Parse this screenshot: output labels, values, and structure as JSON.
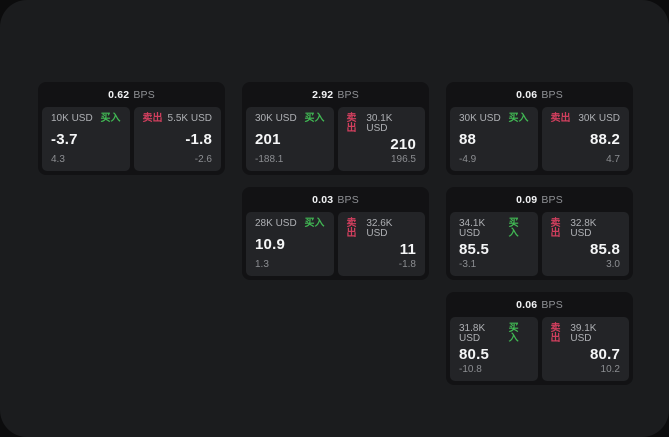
{
  "labels": {
    "bps": "BPS",
    "buy": "买入",
    "sell": "卖出"
  },
  "colors": {
    "page_bg": "#1b1c1e",
    "outer_bg": "#0c0c0d",
    "card_bg": "#121214",
    "panel_bg": "#232427",
    "buy_green": "#41b954",
    "sell_red": "#d13f5e",
    "value_white": "#f5f6f7",
    "muted_gray": "#8c8e92"
  },
  "cards": [
    {
      "row": 1,
      "col": 1,
      "bps": "0.62",
      "buy": {
        "amount": "10K USD",
        "value": "-3.7",
        "sub": "4.3"
      },
      "sell": {
        "amount": "5.5K USD",
        "value": "-1.8",
        "sub": "-2.6"
      }
    },
    {
      "row": 1,
      "col": 2,
      "bps": "2.92",
      "buy": {
        "amount": "30K USD",
        "value": "201",
        "sub": "-188.1"
      },
      "sell": {
        "amount": "30.1K USD",
        "value": "210",
        "sub": "196.5"
      }
    },
    {
      "row": 1,
      "col": 3,
      "bps": "0.06",
      "buy": {
        "amount": "30K USD",
        "value": "88",
        "sub": "-4.9"
      },
      "sell": {
        "amount": "30K USD",
        "value": "88.2",
        "sub": "4.7"
      }
    },
    {
      "row": 2,
      "col": 2,
      "bps": "0.03",
      "buy": {
        "amount": "28K USD",
        "value": "10.9",
        "sub": "1.3"
      },
      "sell": {
        "amount": "32.6K USD",
        "value": "11",
        "sub": "-1.8"
      }
    },
    {
      "row": 2,
      "col": 3,
      "bps": "0.09",
      "buy": {
        "amount": "34.1K USD",
        "value": "85.5",
        "sub": "-3.1"
      },
      "sell": {
        "amount": "32.8K USD",
        "value": "85.8",
        "sub": "3.0"
      }
    },
    {
      "row": 3,
      "col": 3,
      "bps": "0.06",
      "buy": {
        "amount": "31.8K USD",
        "value": "80.5",
        "sub": "-10.8"
      },
      "sell": {
        "amount": "39.1K USD",
        "value": "80.7",
        "sub": "10.2"
      }
    }
  ]
}
